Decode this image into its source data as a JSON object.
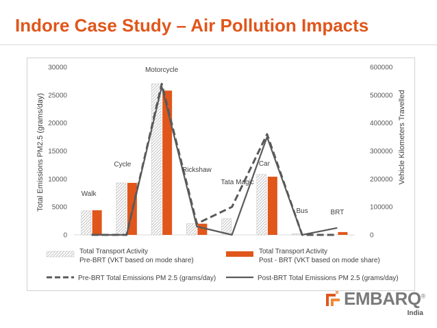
{
  "page": {
    "title": "Indore Case Study – Air Pollution Impacts"
  },
  "logo": {
    "name": "EMBARQ",
    "sub": "India",
    "registered": "®"
  },
  "chart_data": {
    "type": "bar",
    "categories": [
      "Walk",
      "Cycle",
      "Motorcycle",
      "Rickshaw",
      "Tata Magic",
      "Car",
      "Bus",
      "BRT"
    ],
    "left_axis": {
      "label": "Total Emissions PM2.5 (grams/day)",
      "range": [
        0,
        30000
      ],
      "ticks": [
        "0",
        "5000",
        "10000",
        "15000",
        "20000",
        "25000",
        "30000"
      ]
    },
    "right_axis": {
      "label": "Vehicle Kilometers Travelled",
      "range": [
        0,
        600000
      ],
      "ticks": [
        "0",
        "100000",
        "200000",
        "300000",
        "400000",
        "500000",
        "600000"
      ]
    },
    "series": [
      {
        "name": "Total Transport Activity Pre-BRT (VKT based on mode share)",
        "legend_line1": "Total Transport Activity",
        "legend_line2": "Pre-BRT (VKT based on mode share)",
        "kind": "bar",
        "style": "hatched",
        "axis": "left",
        "values": [
          4300,
          9300,
          27000,
          2000,
          2900,
          10800,
          200,
          0
        ]
      },
      {
        "name": "Total Transport Activity Post-BRT (VKT based on mode share)",
        "legend_line1": "Total Transport Activity",
        "legend_line2": "Post - BRT (VKT based on mode share)",
        "kind": "bar",
        "style": "solid",
        "color": "#e0561b",
        "axis": "left",
        "values": [
          4400,
          9300,
          25800,
          2000,
          0,
          10400,
          0,
          500
        ]
      },
      {
        "name": "Pre-BRT Total Emissions PM 2.5 (grams/day)",
        "legend_label": "Pre-BRT Total Emissions PM 2.5 (grams/day)",
        "kind": "line",
        "style": "dashed",
        "color": "#595959",
        "axis": "right",
        "values": [
          0,
          0,
          540000,
          40000,
          100000,
          360000,
          0,
          0
        ]
      },
      {
        "name": "Post-BRT Total Emissions PM 2.5 (grams/day)",
        "legend_label": "Post-BRT Total Emissions PM 2.5  (grams/day)",
        "kind": "line",
        "style": "solid",
        "color": "#595959",
        "axis": "right",
        "values": [
          0,
          0,
          530000,
          30000,
          0,
          350000,
          0,
          25000
        ]
      }
    ],
    "grid": false
  }
}
